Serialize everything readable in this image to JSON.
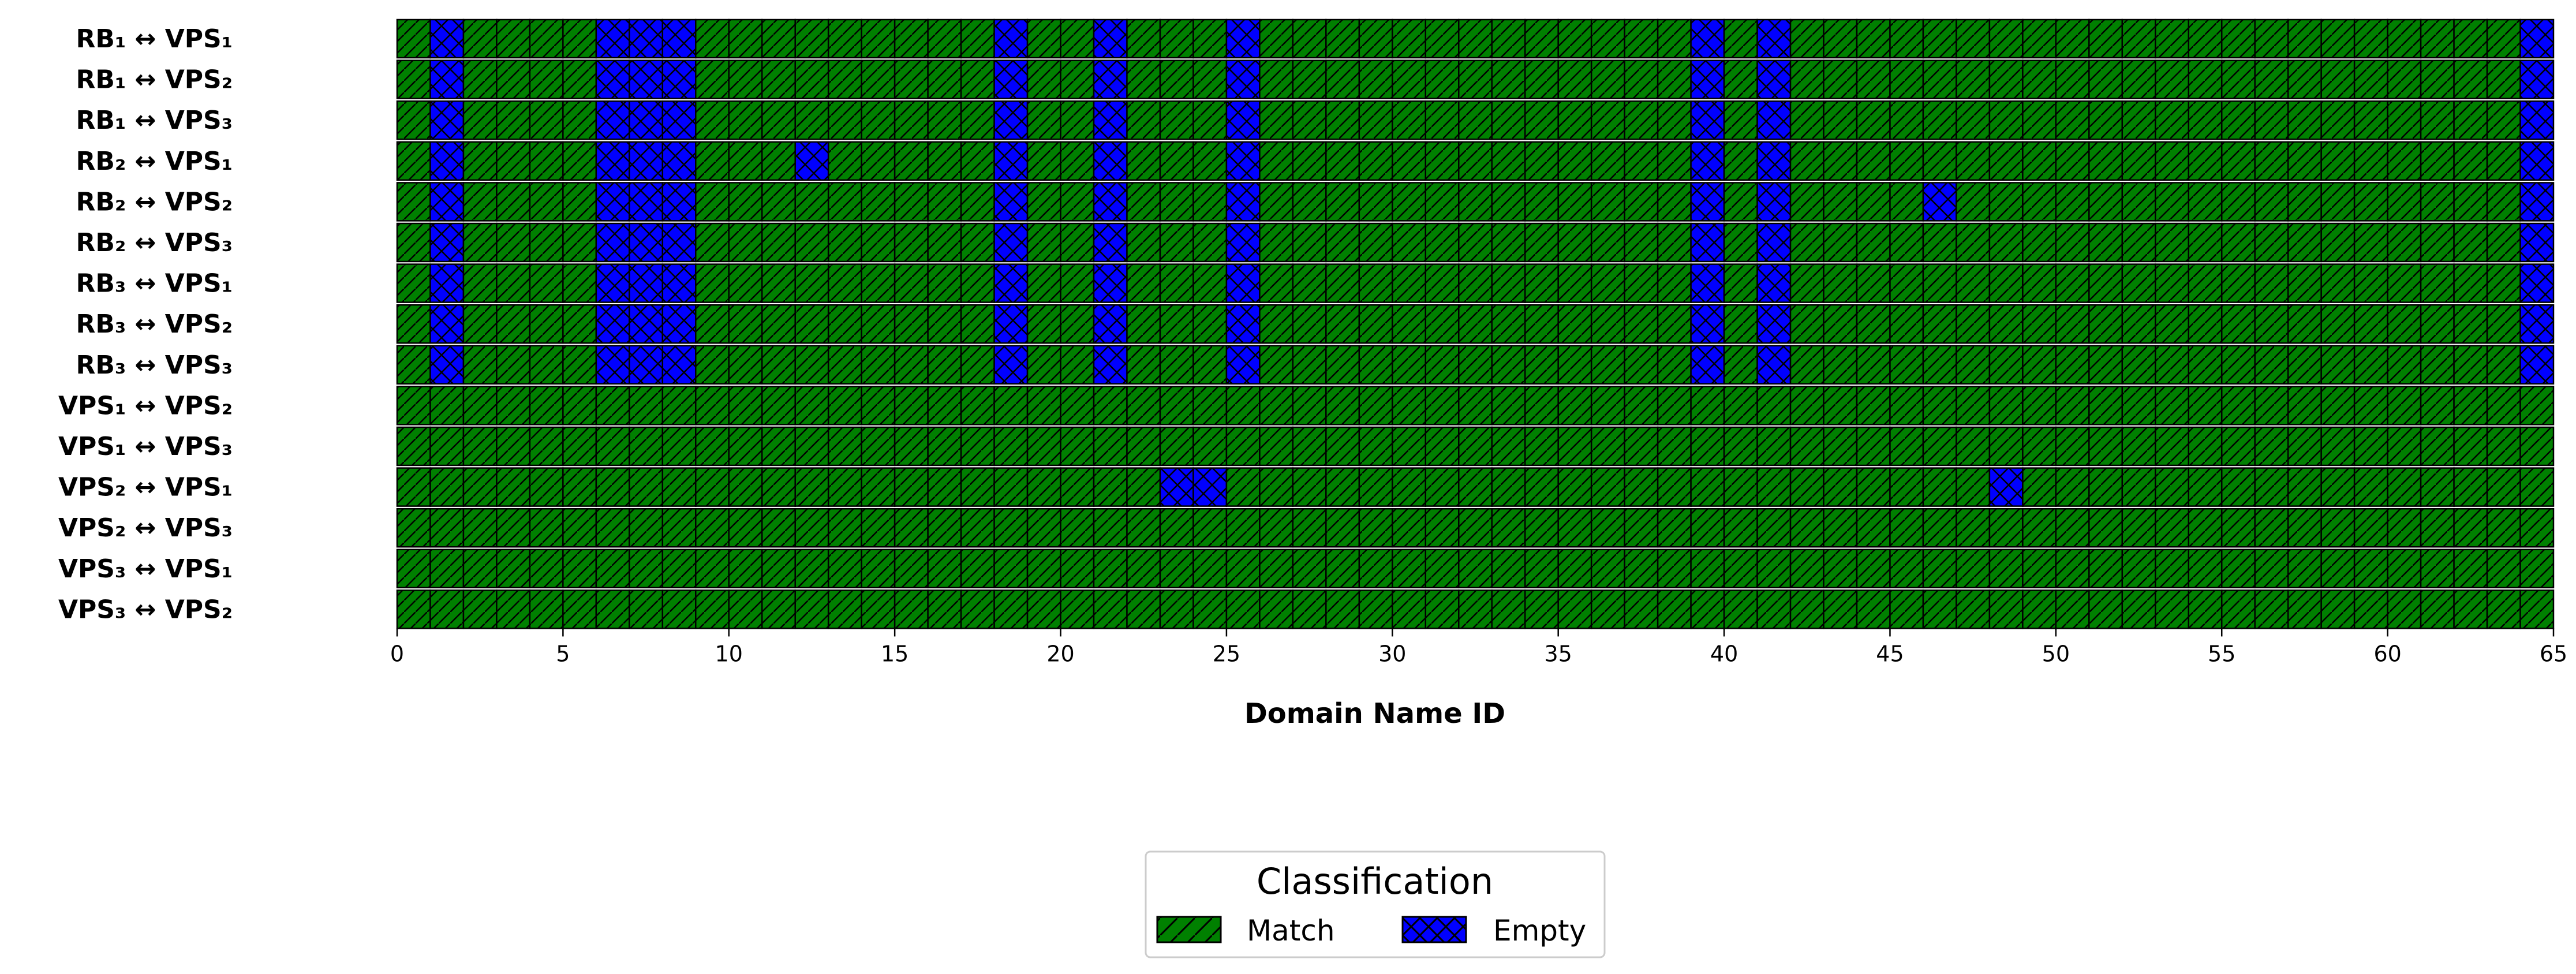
{
  "chart_data": {
    "type": "heatmap",
    "title": "",
    "xlabel": "Domain Name ID",
    "ylabel": "",
    "xlim": [
      0,
      65
    ],
    "x_ticks": [
      0,
      5,
      10,
      15,
      20,
      25,
      30,
      35,
      40,
      45,
      50,
      55,
      60,
      65
    ],
    "num_cells": 65,
    "rows": [
      {
        "label": "RB₁ ↔ VPS₁",
        "empty_ids": [
          1,
          6,
          7,
          8,
          18,
          21,
          25,
          39,
          41,
          64
        ]
      },
      {
        "label": "RB₁ ↔ VPS₂",
        "empty_ids": [
          1,
          6,
          7,
          8,
          18,
          21,
          25,
          39,
          41,
          64
        ]
      },
      {
        "label": "RB₁ ↔ VPS₃",
        "empty_ids": [
          1,
          6,
          7,
          8,
          18,
          21,
          25,
          39,
          41,
          64
        ]
      },
      {
        "label": "RB₂ ↔ VPS₁",
        "empty_ids": [
          1,
          6,
          7,
          8,
          12,
          18,
          21,
          25,
          39,
          41,
          64
        ]
      },
      {
        "label": "RB₂ ↔ VPS₂",
        "empty_ids": [
          1,
          6,
          7,
          8,
          18,
          21,
          25,
          39,
          41,
          46,
          64
        ]
      },
      {
        "label": "RB₂ ↔ VPS₃",
        "empty_ids": [
          1,
          6,
          7,
          8,
          18,
          21,
          25,
          39,
          41,
          64
        ]
      },
      {
        "label": "RB₃ ↔ VPS₁",
        "empty_ids": [
          1,
          6,
          7,
          8,
          18,
          21,
          25,
          39,
          41,
          64
        ]
      },
      {
        "label": "RB₃ ↔ VPS₂",
        "empty_ids": [
          1,
          6,
          7,
          8,
          18,
          21,
          25,
          39,
          41,
          64
        ]
      },
      {
        "label": "RB₃ ↔ VPS₃",
        "empty_ids": [
          1,
          6,
          7,
          8,
          18,
          21,
          25,
          39,
          41,
          64
        ]
      },
      {
        "label": "VPS₁ ↔ VPS₂",
        "empty_ids": []
      },
      {
        "label": "VPS₁ ↔ VPS₃",
        "empty_ids": []
      },
      {
        "label": "VPS₂ ↔ VPS₁",
        "empty_ids": [
          23,
          24,
          48
        ]
      },
      {
        "label": "VPS₂ ↔ VPS₃",
        "empty_ids": []
      },
      {
        "label": "VPS₃ ↔ VPS₁",
        "empty_ids": []
      },
      {
        "label": "VPS₃ ↔ VPS₂",
        "empty_ids": []
      }
    ],
    "categories": [
      {
        "name": "Match",
        "color": "#008000",
        "hatch": "/"
      },
      {
        "name": "Empty",
        "color": "#0000ff",
        "hatch": "x"
      }
    ],
    "legend": {
      "title": "Classification",
      "placement": "bottom-center"
    }
  }
}
